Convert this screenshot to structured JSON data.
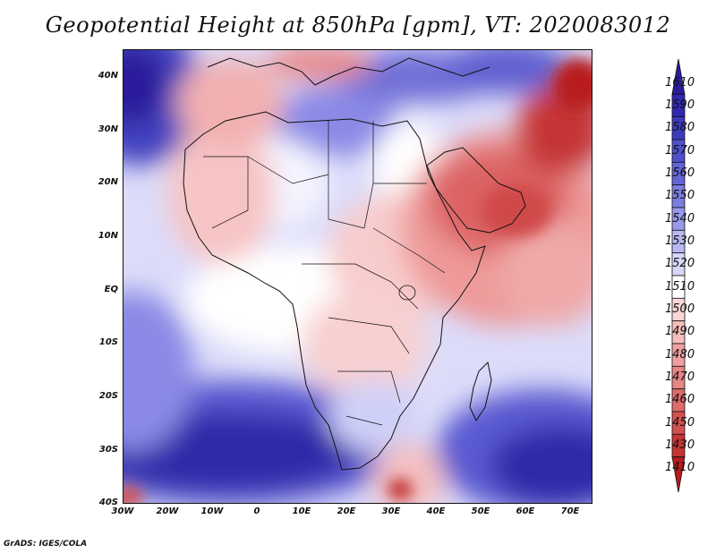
{
  "title": "Geopotential Height at 850hPa [gpm], VT: 2020083012",
  "credit": "GrADS: IGES/COLA",
  "map": {
    "lon_range": [
      -30,
      75
    ],
    "lat_range": [
      -40,
      45
    ],
    "lat_ticks": [
      "40N",
      "30N",
      "20N",
      "10N",
      "EQ",
      "10S",
      "20S",
      "30S",
      "40S"
    ],
    "lon_ticks": [
      "30W",
      "20W",
      "10W",
      "0",
      "10E",
      "20E",
      "30E",
      "40E",
      "50E",
      "60E",
      "70E"
    ]
  },
  "legend": {
    "levels": [
      "1610",
      "1590",
      "1580",
      "1570",
      "1560",
      "1550",
      "1540",
      "1530",
      "1520",
      "1510",
      "1500",
      "1490",
      "1480",
      "1470",
      "1460",
      "1450",
      "1430",
      "1410"
    ],
    "colors": [
      "#2a1d9a",
      "#3127b0",
      "#3d3ac0",
      "#5050cc",
      "#6464d6",
      "#7b7ce0",
      "#9899ea",
      "#b7b8f2",
      "#d6d7fa",
      "#ffffff",
      "#fbd6d6",
      "#f6bcbc",
      "#f0a0a0",
      "#e88585",
      "#df6a6a",
      "#d45050",
      "#c63434",
      "#b81c1c"
    ]
  }
}
